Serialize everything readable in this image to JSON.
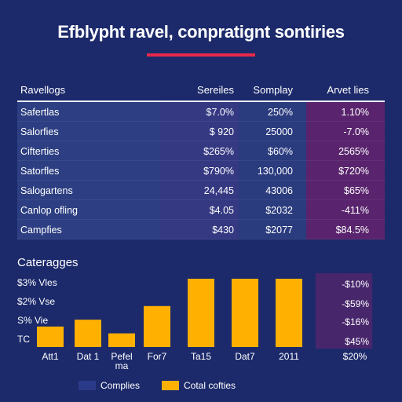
{
  "title": "Efblypht ravel, conpratignt sontiries",
  "colors": {
    "accent": "#e8294a",
    "bar": "#ffb000",
    "background": "#1c2a6b",
    "highlight": "#6e236e"
  },
  "table": {
    "headers": [
      "Ravellogs",
      "Sereiles",
      "Somplay",
      "Arvet lies"
    ],
    "rows": [
      [
        "Safertlas",
        "$7.0%",
        "250%",
        "1.10%"
      ],
      [
        "Salorfies",
        "$ 920",
        "25000",
        "-7.0%"
      ],
      [
        "Cifterties",
        "$265%",
        "$60%",
        "2565%"
      ],
      [
        "Satorfles",
        "$790%",
        "130,000",
        "$720%"
      ],
      [
        "Salogartens",
        "24,445",
        "43006",
        "$65%"
      ],
      [
        "Canlop ofling",
        "$4.05",
        "$2032",
        "-411%"
      ],
      [
        "Campfies",
        "$430",
        "$2077",
        "$84.5%"
      ]
    ]
  },
  "chart_data": {
    "type": "bar",
    "title": "Cateragges",
    "categories": [
      "Att1",
      "Dat 1",
      "Pefel\nma",
      "For7",
      "Ta15",
      "Dat7",
      "2011"
    ],
    "series": [
      {
        "values": [
          3,
          4,
          2,
          6,
          10,
          10,
          10
        ]
      }
    ],
    "ylim": [
      0,
      10
    ],
    "yticks": [
      "$3% Vles",
      "$2% Vse",
      "S% Vie",
      "TC"
    ],
    "right_values": [
      "-$10%",
      "-$59%",
      "-$16%",
      "$45%"
    ],
    "right_footer": "$20%",
    "legend": [
      {
        "label": "Complies",
        "color": "#2b3a88"
      },
      {
        "label": "Cotal cofties",
        "color": "#ffb000"
      }
    ]
  }
}
